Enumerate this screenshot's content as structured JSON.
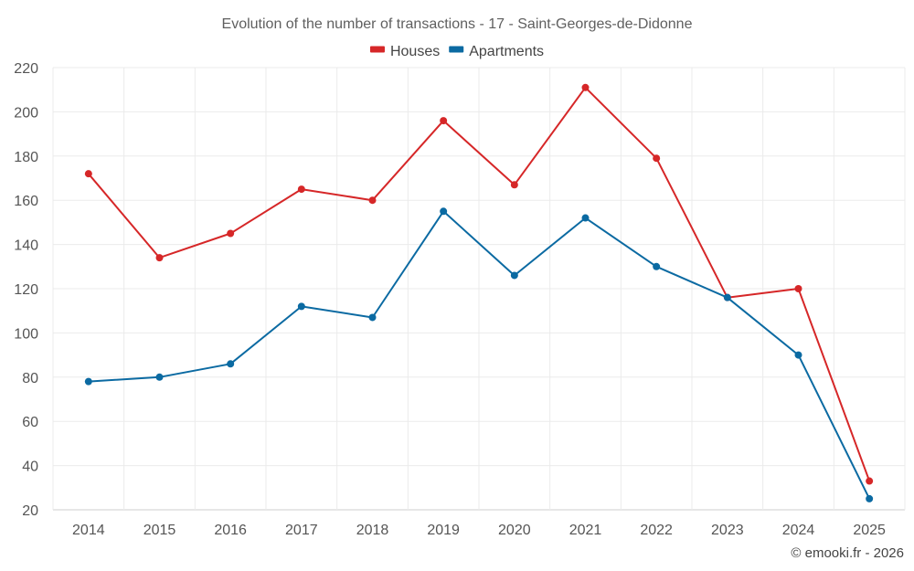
{
  "chart_data": {
    "type": "line",
    "title": "Evolution of the number of transactions - 17 - Saint-Georges-de-Didonne",
    "categories": [
      "2014",
      "2015",
      "2016",
      "2017",
      "2018",
      "2019",
      "2020",
      "2021",
      "2022",
      "2023",
      "2024",
      "2025"
    ],
    "series": [
      {
        "name": "Houses",
        "color": "#d62728",
        "values": [
          172,
          134,
          145,
          165,
          160,
          196,
          167,
          211,
          179,
          116,
          120,
          33
        ]
      },
      {
        "name": "Apartments",
        "color": "#0b6aa2",
        "values": [
          78,
          80,
          86,
          112,
          107,
          155,
          126,
          152,
          130,
          116,
          90,
          25
        ]
      }
    ],
    "ylim": [
      20,
      220
    ],
    "yticks": [
      20,
      40,
      60,
      80,
      100,
      120,
      140,
      160,
      180,
      200,
      220
    ],
    "grid": true,
    "legend_position": "top-center",
    "xlabel": "",
    "ylabel": ""
  },
  "credit": "© emooki.fr - 2026"
}
